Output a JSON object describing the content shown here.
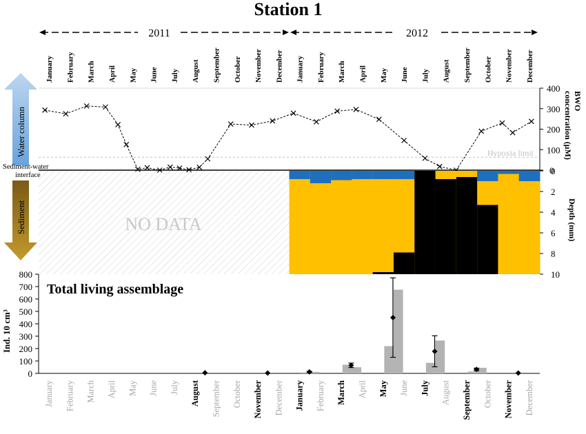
{
  "chart_data": {
    "type": "composite",
    "title": "Station 1",
    "years": [
      "2011",
      "2012"
    ],
    "months": [
      "January",
      "February",
      "March",
      "April",
      "May",
      "June",
      "July",
      "August",
      "September",
      "October",
      "November",
      "December"
    ],
    "bwo_panel": {
      "type": "line",
      "ylabel": "BWO concentration (µM)",
      "ylim": [
        0,
        400
      ],
      "yticks": [
        0,
        100,
        200,
        300,
        400
      ],
      "hypoxia_limit": 63,
      "hypoxia_label": "Hypoxia limit",
      "water_label": "Water column",
      "interface_label": "Sediment-water interface",
      "points": [
        {
          "m": 0.3,
          "v": 293
        },
        {
          "m": 1.3,
          "v": 275
        },
        {
          "m": 2.3,
          "v": 313
        },
        {
          "m": 3.2,
          "v": 308
        },
        {
          "m": 3.8,
          "v": 222
        },
        {
          "m": 4.2,
          "v": 125
        },
        {
          "m": 4.75,
          "v": 4
        },
        {
          "m": 5.2,
          "v": 12
        },
        {
          "m": 5.8,
          "v": 0
        },
        {
          "m": 6.3,
          "v": 15
        },
        {
          "m": 6.75,
          "v": 10
        },
        {
          "m": 7.2,
          "v": 2
        },
        {
          "m": 7.7,
          "v": 14
        },
        {
          "m": 8.1,
          "v": 55
        },
        {
          "m": 9.2,
          "v": 225
        },
        {
          "m": 10.2,
          "v": 220
        },
        {
          "m": 11.2,
          "v": 240
        },
        {
          "m": 12.2,
          "v": 278
        },
        {
          "m": 13.3,
          "v": 236
        },
        {
          "m": 14.3,
          "v": 288
        },
        {
          "m": 15.2,
          "v": 296
        },
        {
          "m": 16.3,
          "v": 248
        },
        {
          "m": 17.5,
          "v": 145
        },
        {
          "m": 18.5,
          "v": 58
        },
        {
          "m": 19.2,
          "v": 18
        },
        {
          "m": 20.0,
          "v": 0
        },
        {
          "m": 21.2,
          "v": 190
        },
        {
          "m": 22.2,
          "v": 230
        },
        {
          "m": 22.7,
          "v": 183
        },
        {
          "m": 23.6,
          "v": 238
        }
      ]
    },
    "sediment_panel": {
      "type": "area",
      "ylabel": "Depth (mm)",
      "ylim": [
        0,
        10
      ],
      "yticks": [
        0,
        2,
        4,
        6,
        8,
        10
      ],
      "side_label": "Sediment",
      "no_data_label": "NO DATA",
      "colors": {
        "oxic": "#1f6fbf",
        "suboxic": "#ffc000",
        "anoxic": "#000000"
      },
      "columns_2012": [
        {
          "month": "January",
          "oxic": 0.8,
          "anoxic": null
        },
        {
          "month": "February",
          "oxic": 1.2,
          "anoxic": null
        },
        {
          "month": "March",
          "oxic": 0.9,
          "anoxic": null
        },
        {
          "month": "April",
          "oxic": 0.8,
          "anoxic": null
        },
        {
          "month": "May",
          "oxic": 0.8,
          "anoxic": 9.8
        },
        {
          "month": "June",
          "oxic": 0.8,
          "anoxic": 7.9
        },
        {
          "month": "July",
          "oxic": 0,
          "anoxic": 0
        },
        {
          "month": "August",
          "oxic": 0,
          "anoxic": 0.8
        },
        {
          "month": "September",
          "oxic": 0,
          "anoxic": 0.6
        },
        {
          "month": "October",
          "oxic": 1.0,
          "anoxic": 3.3
        },
        {
          "month": "November",
          "oxic": 0.3,
          "anoxic": null
        },
        {
          "month": "December",
          "oxic": 1.0,
          "anoxic": null
        }
      ]
    },
    "assemblage_panel": {
      "type": "bar",
      "title": "Total living assemblage",
      "ylabel": "Ind. 10 cm³",
      "ylim": [
        0,
        800
      ],
      "yticks": [
        0,
        100,
        200,
        300,
        400,
        500,
        600,
        700,
        800
      ],
      "bars": [
        {
          "month_index": 14,
          "values": [
            70,
            50
          ]
        },
        {
          "month_index": 16,
          "values": [
            220,
            675
          ]
        },
        {
          "month_index": 18,
          "values": [
            85,
            265
          ]
        },
        {
          "month_index": 20,
          "values": [
            15,
            45
          ]
        },
        {
          "month_index": 12,
          "values": [
            8,
            12
          ]
        }
      ],
      "means": [
        {
          "month_index": 7,
          "value": 5,
          "err": 0
        },
        {
          "month_index": 10,
          "value": 3,
          "err": 0
        },
        {
          "month_index": 12,
          "value": 12,
          "err": 4
        },
        {
          "month_index": 14,
          "value": 65,
          "err": 18
        },
        {
          "month_index": 16,
          "value": 450,
          "err": 320
        },
        {
          "month_index": 18,
          "value": 178,
          "err": 125
        },
        {
          "month_index": 20,
          "value": 32,
          "err": 10
        },
        {
          "month_index": 22,
          "value": 3,
          "err": 0
        }
      ],
      "highlighted_months": [
        7,
        10,
        12,
        14,
        16,
        18,
        20,
        22
      ]
    }
  }
}
